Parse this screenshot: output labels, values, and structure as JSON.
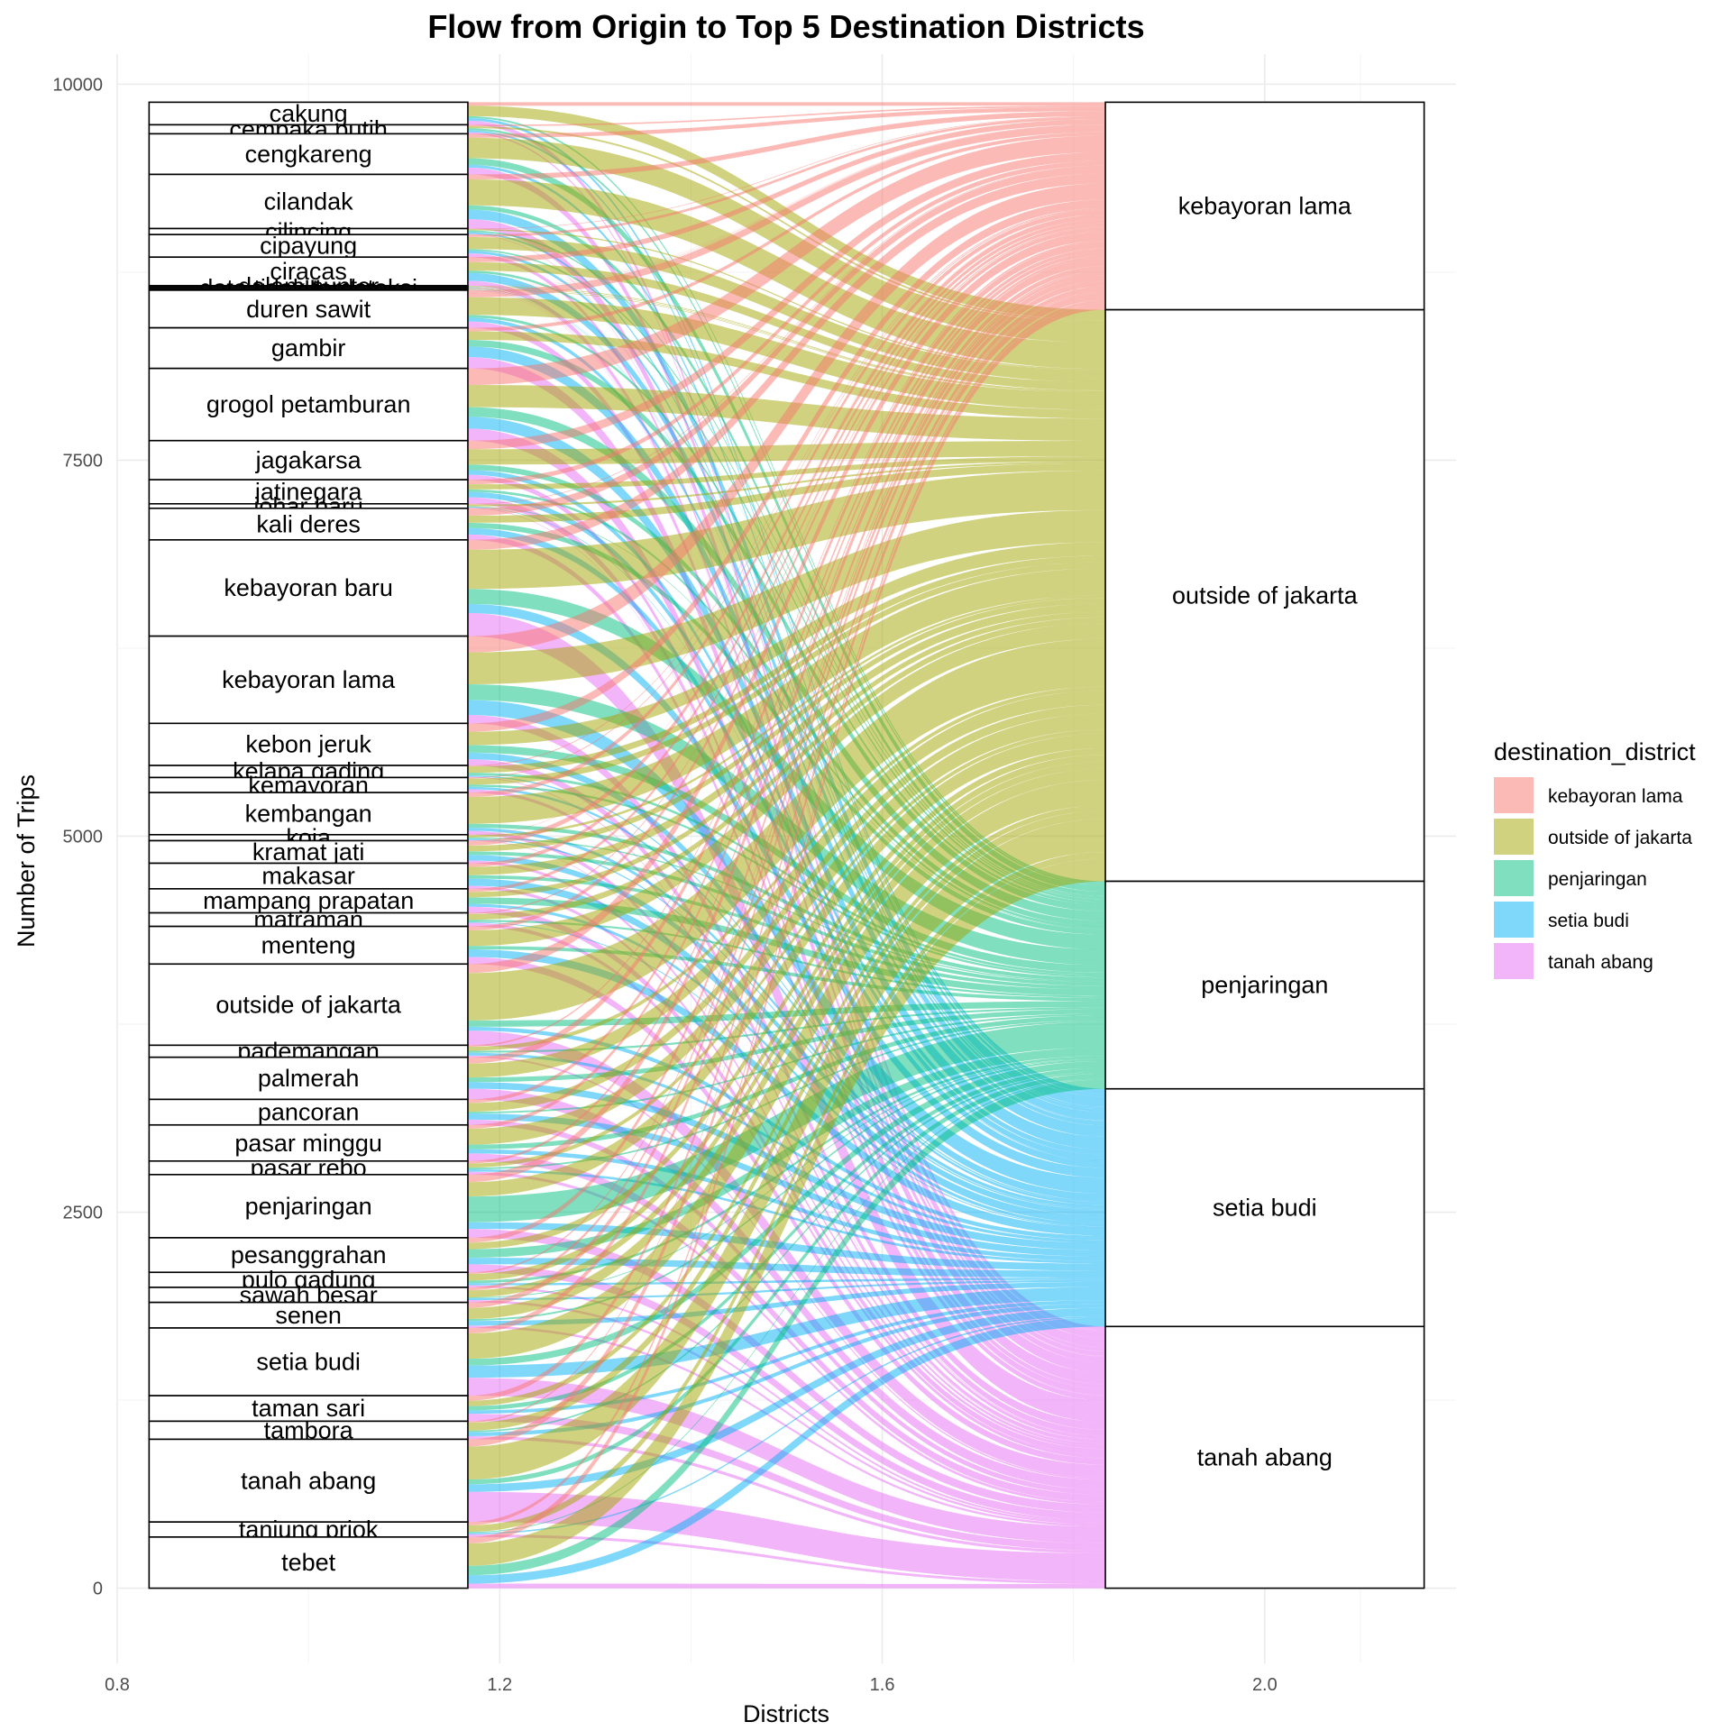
{
  "chart_data": {
    "type": "alluvial",
    "title": "Flow from Origin to Top 5 Destination Districts",
    "xlabel": "Districts",
    "ylabel": "Number of Trips",
    "xlim": [
      0.8,
      2.2
    ],
    "ylim": [
      -500,
      10200
    ],
    "x_ticks": [
      "0.8",
      "1.2",
      "1.6",
      "2.0"
    ],
    "x_tick_values": [
      0.8,
      1.2,
      1.6,
      2.0
    ],
    "y_ticks": [
      "0",
      "2500",
      "5000",
      "7500",
      "10000"
    ],
    "y_tick_values": [
      0,
      2500,
      5000,
      7500,
      10000
    ],
    "grid": true,
    "legend": {
      "title": "destination_district",
      "position": "right",
      "entries": [
        {
          "label": "kebayoran lama",
          "color": "#F8766D"
        },
        {
          "label": "outside of jakarta",
          "color": "#A3A500"
        },
        {
          "label": "penjaringan",
          "color": "#00BF7D"
        },
        {
          "label": "setia budi",
          "color": "#00B0F6"
        },
        {
          "label": "tanah abang",
          "color": "#E76BF3"
        }
      ]
    },
    "total_trips": 9880,
    "origin_strata": [
      {
        "name": "cakung",
        "value": 150
      },
      {
        "name": "cempaka putih",
        "value": 60
      },
      {
        "name": "cengkareng",
        "value": 270
      },
      {
        "name": "cilandak",
        "value": 360
      },
      {
        "name": "cilincing",
        "value": 40
      },
      {
        "name": "cipayung",
        "value": 150
      },
      {
        "name": "ciracas",
        "value": 190
      },
      {
        "name": "dalam sunter",
        "value": 10
      },
      {
        "name": "data tidak terdeteksi",
        "value": 10
      },
      {
        "name": "dll",
        "value": 10
      },
      {
        "name": "duren sawit",
        "value": 250
      },
      {
        "name": "gambir",
        "value": 270
      },
      {
        "name": "grogol petamburan",
        "value": 480
      },
      {
        "name": "jagakarsa",
        "value": 260
      },
      {
        "name": "jatinegara",
        "value": 160
      },
      {
        "name": "johar baru",
        "value": 30
      },
      {
        "name": "kali deres",
        "value": 210
      },
      {
        "name": "kebayoran baru",
        "value": 640
      },
      {
        "name": "kebayoran lama",
        "value": 580
      },
      {
        "name": "kebon jeruk",
        "value": 280
      },
      {
        "name": "kelapa gading",
        "value": 80
      },
      {
        "name": "kemayoran",
        "value": 100
      },
      {
        "name": "kembangan",
        "value": 280
      },
      {
        "name": "koja",
        "value": 40
      },
      {
        "name": "kramat jati",
        "value": 150
      },
      {
        "name": "makasar",
        "value": 170
      },
      {
        "name": "mampang prapatan",
        "value": 160
      },
      {
        "name": "matraman",
        "value": 90
      },
      {
        "name": "menteng",
        "value": 250
      },
      {
        "name": "outside of jakarta",
        "value": 540
      },
      {
        "name": "pademangan",
        "value": 80
      },
      {
        "name": "palmerah",
        "value": 280
      },
      {
        "name": "pancoran",
        "value": 170
      },
      {
        "name": "pasar minggu",
        "value": 240
      },
      {
        "name": "pasar rebo",
        "value": 90
      },
      {
        "name": "penjaringan",
        "value": 420
      },
      {
        "name": "pesanggrahan",
        "value": 230
      },
      {
        "name": "pulo gadung",
        "value": 100
      },
      {
        "name": "sawah besar",
        "value": 100
      },
      {
        "name": "senen",
        "value": 170
      },
      {
        "name": "setia budi",
        "value": 450
      },
      {
        "name": "taman sari",
        "value": 170
      },
      {
        "name": "tambora",
        "value": 120
      },
      {
        "name": "tanah abang",
        "value": 550
      },
      {
        "name": "tanjung priok",
        "value": 100
      },
      {
        "name": "tebet",
        "value": 340
      }
    ],
    "destination_strata": [
      {
        "name": "kebayoran lama",
        "value": 1380
      },
      {
        "name": "outside of jakarta",
        "value": 3800
      },
      {
        "name": "penjaringan",
        "value": 1380
      },
      {
        "name": "setia budi",
        "value": 1580
      },
      {
        "name": "tanah abang",
        "value": 1740
      }
    ]
  }
}
